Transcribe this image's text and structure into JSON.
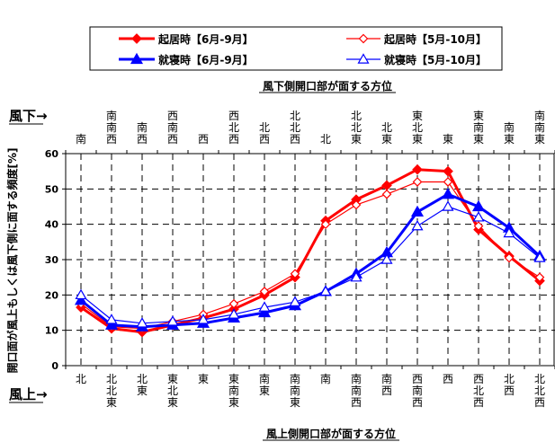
{
  "chart_data": {
    "type": "line",
    "top_axis_title": "風下側開口部が面する方位",
    "bottom_axis_title": "風上側開口部が面する方位",
    "ylabel": "開口面が風上もしくは風下側に面する頻度[%]",
    "leeward_label": "風下→",
    "windward_label": "風上→",
    "ylim": [
      0,
      60
    ],
    "yticks": [
      0,
      10,
      20,
      30,
      40,
      50,
      60
    ],
    "categories": [
      "北",
      "北北東",
      "北東",
      "東北東",
      "東",
      "東南東",
      "南東",
      "南南東",
      "南",
      "南南西",
      "南西",
      "西南西",
      "西",
      "西北西",
      "北西",
      "北北西"
    ],
    "top_categories": [
      "南",
      "南南西",
      "南西",
      "西南西",
      "西",
      "西北西",
      "北西",
      "北北西",
      "北",
      "北北東",
      "北東",
      "東北東",
      "東",
      "東南東",
      "南東",
      "南南東"
    ],
    "series": [
      {
        "name": "起居時【6月-9月】",
        "color": "#ff0000",
        "marker": "diamond-filled",
        "width": "bold",
        "values": [
          16.5,
          10.5,
          9.5,
          11.5,
          13.5,
          16,
          20,
          25,
          41,
          47,
          51,
          55.5,
          55,
          38.5,
          31,
          24
        ]
      },
      {
        "name": "起居時【5月-10月】",
        "color": "#ff0000",
        "marker": "diamond-open",
        "width": "thin",
        "values": [
          17.5,
          11,
          10.5,
          12.5,
          14.5,
          17.5,
          21,
          26,
          40,
          45.5,
          48.5,
          52,
          52,
          39.5,
          30.5,
          25
        ]
      },
      {
        "name": "就寝時【6月-9月】",
        "color": "#0000ff",
        "marker": "triangle-filled",
        "width": "bold",
        "values": [
          18.5,
          11.5,
          11,
          11.5,
          12,
          13.5,
          15,
          17,
          21,
          26,
          32,
          43.5,
          48.5,
          45,
          39,
          31
        ]
      },
      {
        "name": "就寝時【5月-10月】",
        "color": "#0000ff",
        "marker": "triangle-open",
        "width": "thin",
        "values": [
          20,
          13,
          12,
          12.5,
          13,
          14.5,
          16.5,
          18,
          21,
          25,
          30,
          39.5,
          45,
          42,
          37.5,
          30.5
        ]
      }
    ],
    "grid": true,
    "legend": "top"
  }
}
